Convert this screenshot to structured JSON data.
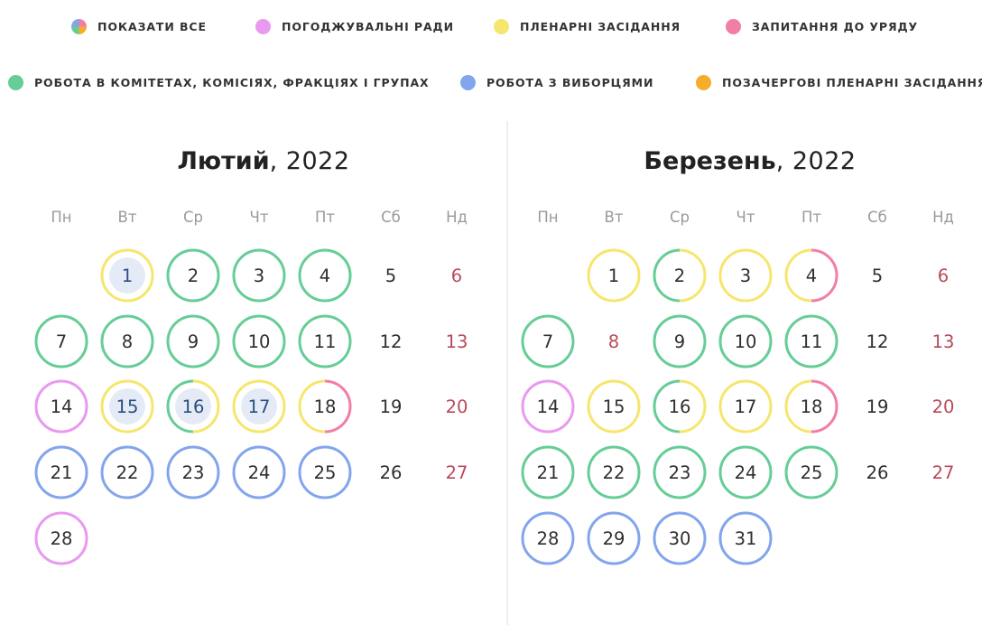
{
  "legend": [
    {
      "id": "all",
      "label": "Показати все",
      "color": "conic"
    },
    {
      "id": "council",
      "label": "Погоджувальні ради",
      "color": "#e999f0"
    },
    {
      "id": "plenary",
      "label": "Пленарні засідання",
      "color": "#f6e66d"
    },
    {
      "id": "questions",
      "label": "Запитання до уряду",
      "color": "#f37ea5"
    },
    {
      "id": "committees",
      "label": "Робота в комітетах, комісіях, фракціях і групах",
      "color": "#66cd97"
    },
    {
      "id": "voters",
      "label": "Робота з виборцями",
      "color": "#82a5ec"
    },
    {
      "id": "extraordinary",
      "label": "Позачергові пленарні засідання",
      "color": "#f6ad2b"
    }
  ],
  "colors": {
    "pink": "#e999f0",
    "yellow": "#f6e66d",
    "red": "#f37ea5",
    "green": "#66cd97",
    "blue": "#82a5ec",
    "orange": "#f6ad2b"
  },
  "weekdays": [
    "Пн",
    "Вт",
    "Ср",
    "Чт",
    "Пт",
    "Сб",
    "Нд"
  ],
  "months": [
    {
      "name": "Лютий",
      "year": ", 2022",
      "days": [
        {
          "d": "1",
          "row": 0,
          "col": 1,
          "ring": [
            "yellow"
          ],
          "selected": true
        },
        {
          "d": "2",
          "row": 0,
          "col": 2,
          "ring": [
            "green"
          ]
        },
        {
          "d": "3",
          "row": 0,
          "col": 3,
          "ring": [
            "green"
          ]
        },
        {
          "d": "4",
          "row": 0,
          "col": 4,
          "ring": [
            "green"
          ]
        },
        {
          "d": "5",
          "row": 0,
          "col": 5,
          "ring": []
        },
        {
          "d": "6",
          "row": 0,
          "col": 6,
          "ring": [],
          "sunday": true
        },
        {
          "d": "7",
          "row": 1,
          "col": 0,
          "ring": [
            "green"
          ]
        },
        {
          "d": "8",
          "row": 1,
          "col": 1,
          "ring": [
            "green"
          ]
        },
        {
          "d": "9",
          "row": 1,
          "col": 2,
          "ring": [
            "green"
          ]
        },
        {
          "d": "10",
          "row": 1,
          "col": 3,
          "ring": [
            "green"
          ]
        },
        {
          "d": "11",
          "row": 1,
          "col": 4,
          "ring": [
            "green"
          ]
        },
        {
          "d": "12",
          "row": 1,
          "col": 5,
          "ring": []
        },
        {
          "d": "13",
          "row": 1,
          "col": 6,
          "ring": [],
          "sunday": true
        },
        {
          "d": "14",
          "row": 2,
          "col": 0,
          "ring": [
            "pink"
          ]
        },
        {
          "d": "15",
          "row": 2,
          "col": 1,
          "ring": [
            "yellow"
          ],
          "selected": true
        },
        {
          "d": "16",
          "row": 2,
          "col": 2,
          "ring": [
            "yellow",
            "green"
          ],
          "selected": true
        },
        {
          "d": "17",
          "row": 2,
          "col": 3,
          "ring": [
            "yellow"
          ],
          "selected": true
        },
        {
          "d": "18",
          "row": 2,
          "col": 4,
          "ring": [
            "red",
            "yellow"
          ]
        },
        {
          "d": "19",
          "row": 2,
          "col": 5,
          "ring": []
        },
        {
          "d": "20",
          "row": 2,
          "col": 6,
          "ring": [],
          "sunday": true
        },
        {
          "d": "21",
          "row": 3,
          "col": 0,
          "ring": [
            "blue"
          ]
        },
        {
          "d": "22",
          "row": 3,
          "col": 1,
          "ring": [
            "blue"
          ]
        },
        {
          "d": "23",
          "row": 3,
          "col": 2,
          "ring": [
            "blue"
          ]
        },
        {
          "d": "24",
          "row": 3,
          "col": 3,
          "ring": [
            "blue"
          ]
        },
        {
          "d": "25",
          "row": 3,
          "col": 4,
          "ring": [
            "blue"
          ]
        },
        {
          "d": "26",
          "row": 3,
          "col": 5,
          "ring": []
        },
        {
          "d": "27",
          "row": 3,
          "col": 6,
          "ring": [],
          "sunday": true
        },
        {
          "d": "28",
          "row": 4,
          "col": 0,
          "ring": [
            "pink"
          ]
        }
      ]
    },
    {
      "name": "Березень",
      "year": ", 2022",
      "days": [
        {
          "d": "1",
          "row": 0,
          "col": 1,
          "ring": [
            "yellow"
          ]
        },
        {
          "d": "2",
          "row": 0,
          "col": 2,
          "ring": [
            "yellow",
            "green"
          ]
        },
        {
          "d": "3",
          "row": 0,
          "col": 3,
          "ring": [
            "yellow"
          ]
        },
        {
          "d": "4",
          "row": 0,
          "col": 4,
          "ring": [
            "red",
            "yellow"
          ]
        },
        {
          "d": "5",
          "row": 0,
          "col": 5,
          "ring": []
        },
        {
          "d": "6",
          "row": 0,
          "col": 6,
          "ring": [],
          "sunday": true
        },
        {
          "d": "7",
          "row": 1,
          "col": 0,
          "ring": [
            "green"
          ]
        },
        {
          "d": "8",
          "row": 1,
          "col": 1,
          "ring": [],
          "sunday": true
        },
        {
          "d": "9",
          "row": 1,
          "col": 2,
          "ring": [
            "green"
          ]
        },
        {
          "d": "10",
          "row": 1,
          "col": 3,
          "ring": [
            "green"
          ]
        },
        {
          "d": "11",
          "row": 1,
          "col": 4,
          "ring": [
            "green"
          ]
        },
        {
          "d": "12",
          "row": 1,
          "col": 5,
          "ring": []
        },
        {
          "d": "13",
          "row": 1,
          "col": 6,
          "ring": [],
          "sunday": true
        },
        {
          "d": "14",
          "row": 2,
          "col": 0,
          "ring": [
            "pink"
          ]
        },
        {
          "d": "15",
          "row": 2,
          "col": 1,
          "ring": [
            "yellow"
          ]
        },
        {
          "d": "16",
          "row": 2,
          "col": 2,
          "ring": [
            "yellow",
            "green"
          ]
        },
        {
          "d": "17",
          "row": 2,
          "col": 3,
          "ring": [
            "yellow"
          ]
        },
        {
          "d": "18",
          "row": 2,
          "col": 4,
          "ring": [
            "red",
            "yellow"
          ]
        },
        {
          "d": "19",
          "row": 2,
          "col": 5,
          "ring": []
        },
        {
          "d": "20",
          "row": 2,
          "col": 6,
          "ring": [],
          "sunday": true
        },
        {
          "d": "21",
          "row": 3,
          "col": 0,
          "ring": [
            "green"
          ]
        },
        {
          "d": "22",
          "row": 3,
          "col": 1,
          "ring": [
            "green"
          ]
        },
        {
          "d": "23",
          "row": 3,
          "col": 2,
          "ring": [
            "green"
          ]
        },
        {
          "d": "24",
          "row": 3,
          "col": 3,
          "ring": [
            "green"
          ]
        },
        {
          "d": "25",
          "row": 3,
          "col": 4,
          "ring": [
            "green"
          ]
        },
        {
          "d": "26",
          "row": 3,
          "col": 5,
          "ring": []
        },
        {
          "d": "27",
          "row": 3,
          "col": 6,
          "ring": [],
          "sunday": true
        },
        {
          "d": "28",
          "row": 4,
          "col": 0,
          "ring": [
            "blue"
          ]
        },
        {
          "d": "29",
          "row": 4,
          "col": 1,
          "ring": [
            "blue"
          ]
        },
        {
          "d": "30",
          "row": 4,
          "col": 2,
          "ring": [
            "blue"
          ]
        },
        {
          "d": "31",
          "row": 4,
          "col": 3,
          "ring": [
            "blue"
          ]
        }
      ]
    }
  ]
}
